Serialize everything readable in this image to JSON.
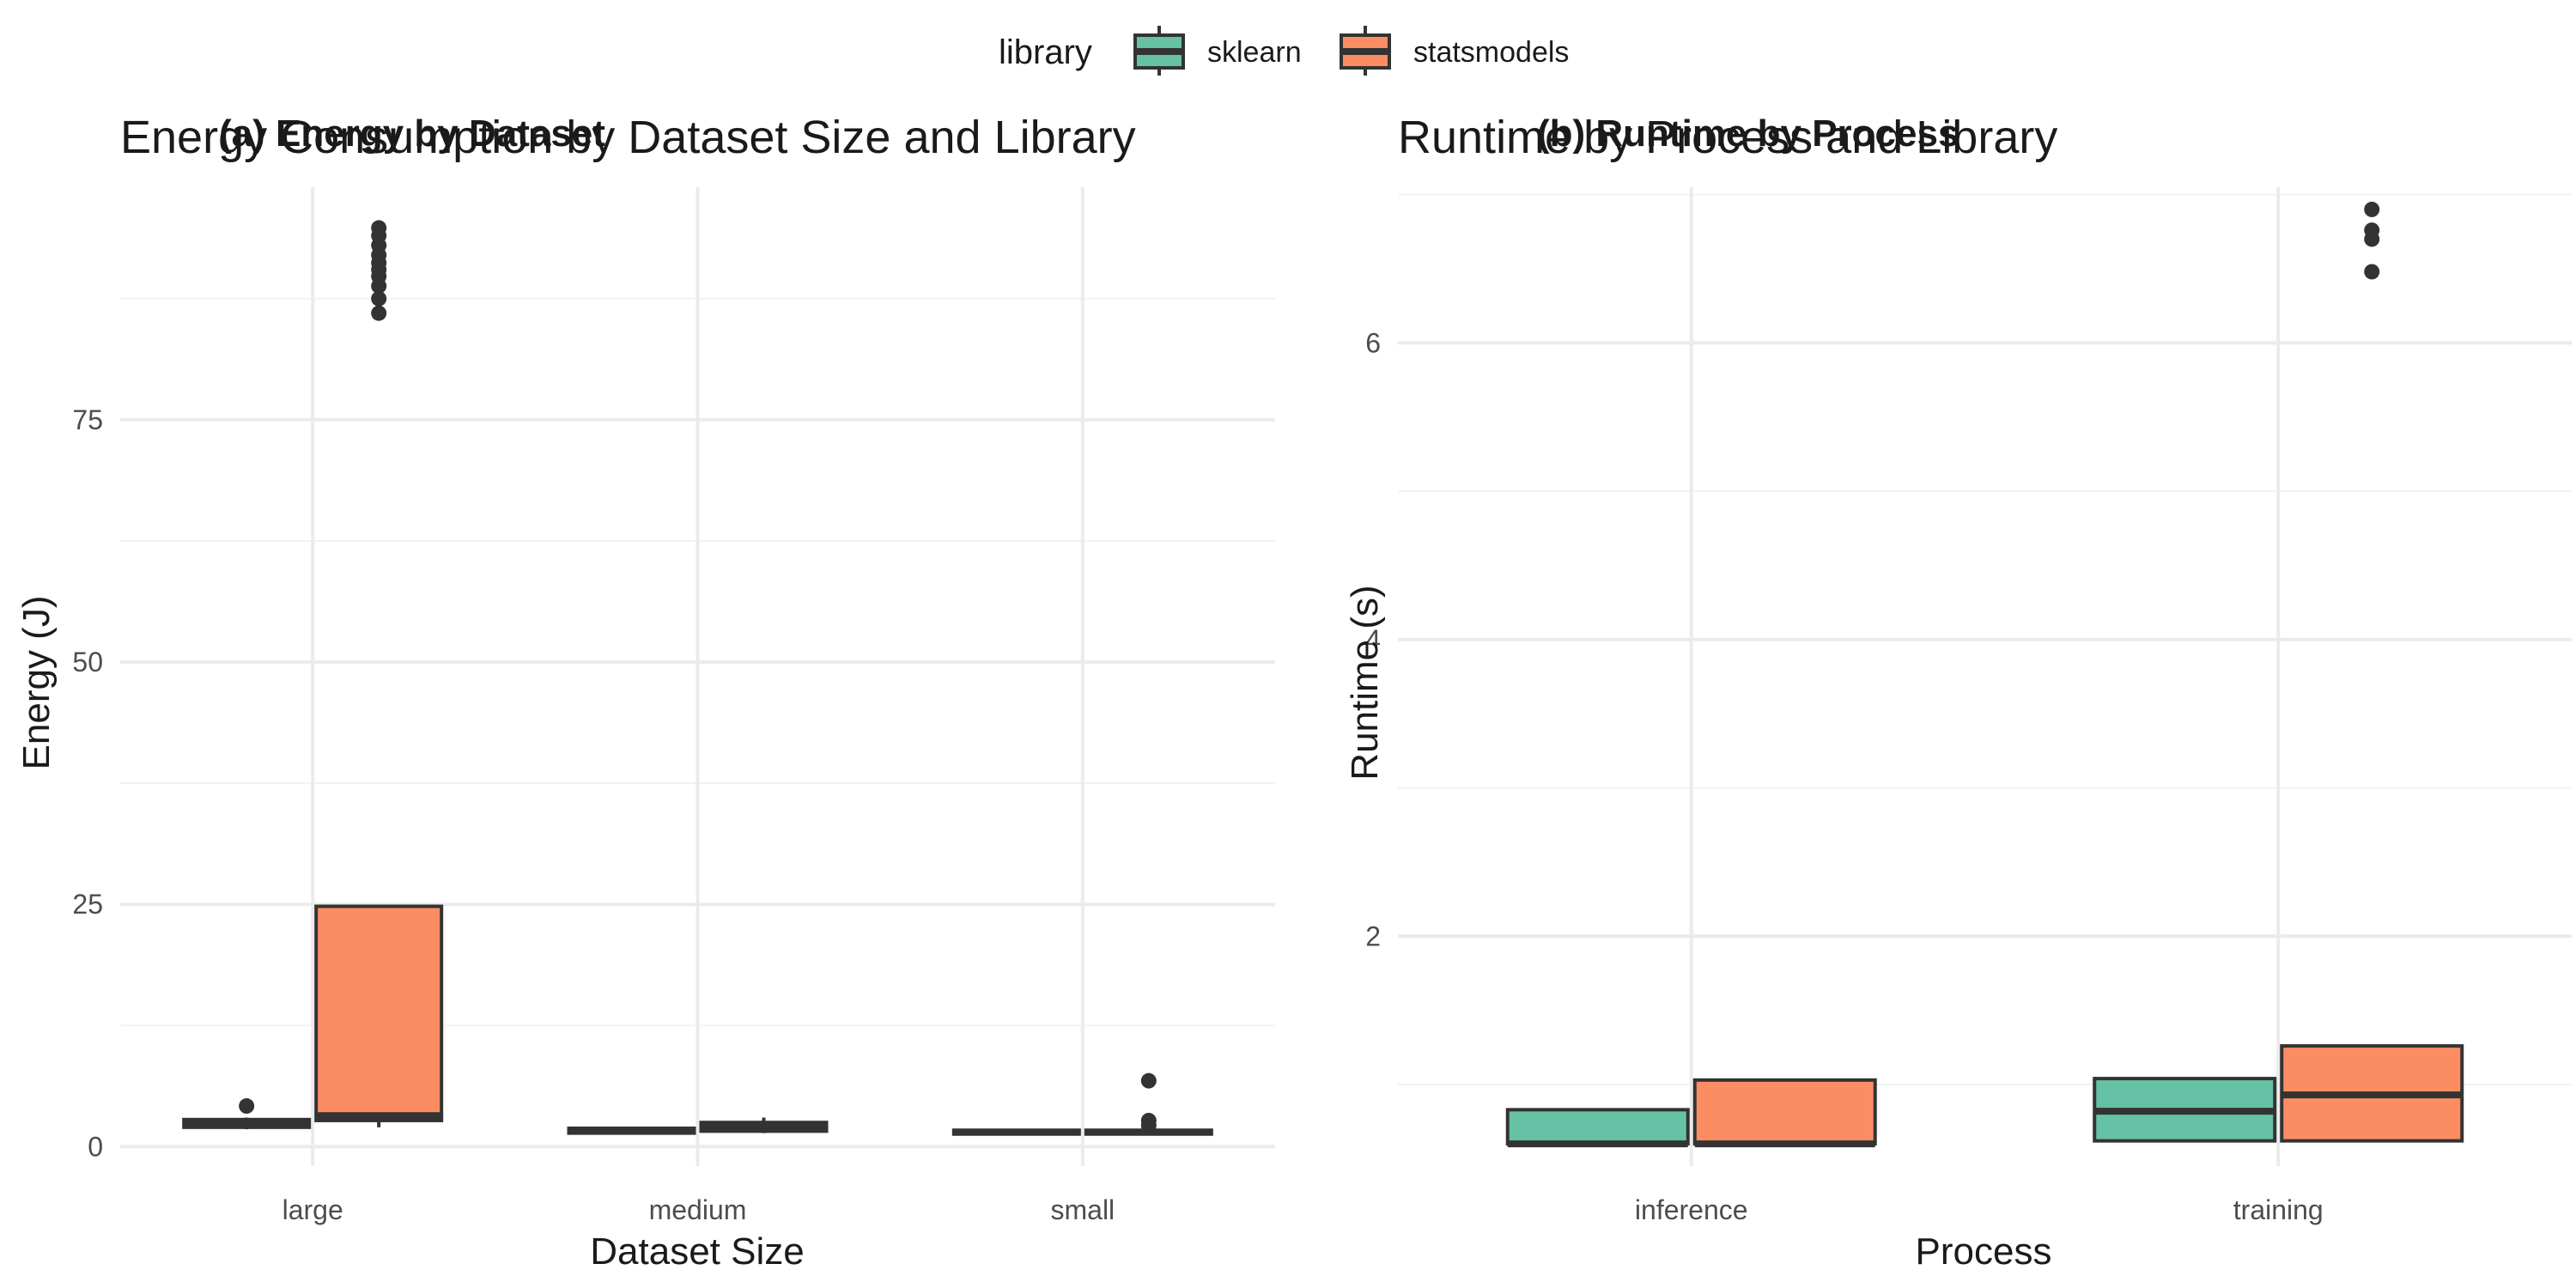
{
  "legend": {
    "title": "library",
    "items": [
      {
        "label": "sklearn",
        "color": "#66c2a5"
      },
      {
        "label": "statsmodels",
        "color": "#fc8d62"
      }
    ]
  },
  "chart_data": [
    {
      "type": "box",
      "title": "Energy Consumption by Dataset Size and Library",
      "panel_tag": "(a) Energy by Dataset",
      "xlabel": "Dataset Size",
      "ylabel": "Energy (J)",
      "ylim": [
        -2,
        99
      ],
      "yticks": [
        0,
        25,
        50,
        75
      ],
      "grid": true,
      "categories": [
        "large",
        "medium",
        "small"
      ],
      "series": [
        {
          "name": "sklearn",
          "color": "#66c2a5",
          "boxes": [
            {
              "category": "large",
              "min": 1.8,
              "q1": 2.0,
              "median": 2.4,
              "q3": 2.8,
              "max": 3.0,
              "outliers": [
                4.2
              ]
            },
            {
              "category": "medium",
              "min": 1.3,
              "q1": 1.4,
              "median": 1.6,
              "q3": 1.9,
              "max": 2.0,
              "outliers": []
            },
            {
              "category": "small",
              "min": 1.2,
              "q1": 1.3,
              "median": 1.5,
              "q3": 1.7,
              "max": 1.8,
              "outliers": []
            }
          ]
        },
        {
          "name": "statsmodels",
          "color": "#fc8d62",
          "boxes": [
            {
              "category": "large",
              "min": 2.0,
              "q1": 2.7,
              "median": 3.2,
              "q3": 24.8,
              "max": 24.8,
              "outliers": [
                86.0,
                87.5,
                88.8,
                89.8,
                90.5,
                91.2,
                92.0,
                93.0,
                94.0,
                94.8
              ]
            },
            {
              "category": "medium",
              "min": 1.4,
              "q1": 1.6,
              "median": 2.1,
              "q3": 2.5,
              "max": 3.0,
              "outliers": []
            },
            {
              "category": "small",
              "min": 1.3,
              "q1": 1.3,
              "median": 1.5,
              "q3": 1.7,
              "max": 1.8,
              "outliers": [
                2.2,
                2.7,
                6.8
              ]
            }
          ]
        }
      ]
    },
    {
      "type": "box",
      "title": "Runtime by Process and Library",
      "panel_tag": "(b) Runtime by Process",
      "xlabel": "Process",
      "ylabel": "Runtime (s)",
      "ylim": [
        0.45,
        7.05
      ],
      "yticks": [
        2,
        4,
        6
      ],
      "grid": true,
      "categories": [
        "inference",
        "training"
      ],
      "series": [
        {
          "name": "sklearn",
          "color": "#66c2a5",
          "boxes": [
            {
              "category": "inference",
              "min": 0.6,
              "q1": 0.6,
              "median": 0.6,
              "q3": 0.83,
              "max": 0.83,
              "outliers": []
            },
            {
              "category": "training",
              "min": 0.62,
              "q1": 0.62,
              "median": 0.82,
              "q3": 1.04,
              "max": 1.04,
              "outliers": []
            }
          ]
        },
        {
          "name": "statsmodels",
          "color": "#fc8d62",
          "boxes": [
            {
              "category": "inference",
              "min": 0.6,
              "q1": 0.6,
              "median": 0.6,
              "q3": 1.03,
              "max": 1.03,
              "outliers": []
            },
            {
              "category": "training",
              "min": 0.62,
              "q1": 0.62,
              "median": 0.93,
              "q3": 1.26,
              "max": 1.26,
              "outliers": [
                6.48,
                6.7,
                6.76,
                6.9
              ]
            }
          ]
        }
      ]
    }
  ]
}
